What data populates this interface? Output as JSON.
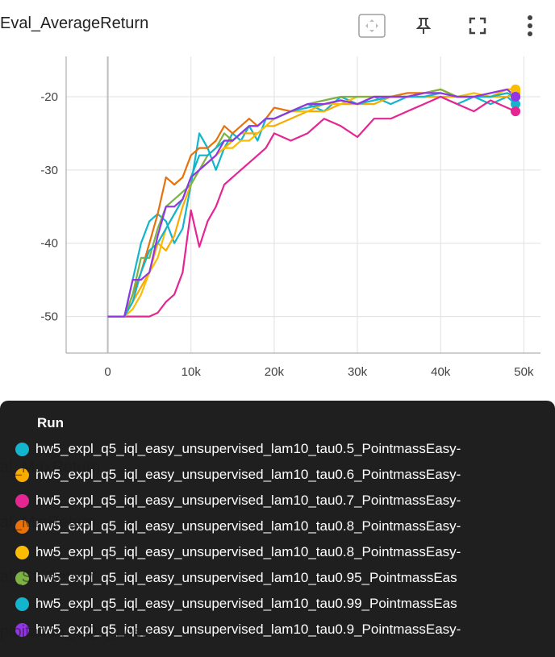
{
  "header": {
    "title": "Eval_AverageReturn",
    "tools": [
      {
        "name": "fit-domain-icon"
      },
      {
        "name": "pin-icon"
      },
      {
        "name": "fullscreen-icon"
      },
      {
        "name": "more-vert-icon"
      }
    ]
  },
  "background_titles": [
    "al_MaxReturn",
    "al_MinReturn",
    "al_StdReturn",
    "ploitation_CQL_Loss"
  ],
  "chart_data": {
    "type": "line",
    "title": "Eval_AverageReturn",
    "xlabel": "",
    "ylabel": "",
    "xlim": [
      -5000,
      52000
    ],
    "ylim": [
      -55,
      -14.5
    ],
    "x_ticks": [
      0,
      10000,
      20000,
      30000,
      40000,
      50000
    ],
    "x_tick_labels": [
      "0",
      "10k",
      "20k",
      "30k",
      "40k",
      "50k"
    ],
    "y_ticks": [
      -20,
      -30,
      -40,
      -50
    ],
    "y_tick_labels": [
      "-20",
      "-30",
      "-40",
      "-50"
    ],
    "grid": true,
    "series": [
      {
        "name": "hw5_expl_q5_iql_easy_unsupervised_lam10_tau0.5_PointmassEasy-",
        "color": "#12b5cb",
        "x": [
          0,
          1000,
          2000,
          3000,
          4000,
          5000,
          6000,
          7000,
          8000,
          9000,
          10000,
          11000,
          12000,
          13000,
          14000,
          15000,
          16000,
          17000,
          18000,
          19000,
          20000,
          22000,
          24000,
          26000,
          28000,
          30000,
          32000,
          34000,
          36000,
          38000,
          40000,
          42000,
          44000,
          46000,
          48000,
          49000
        ],
        "y": [
          -50,
          -50,
          -50,
          -45,
          -40,
          -37,
          -36,
          -37,
          -40,
          -38,
          -32,
          -25,
          -27,
          -30,
          -27,
          -25,
          -26,
          -24,
          -26,
          -23,
          -23,
          -22,
          -21,
          -22,
          -20,
          -21,
          -20,
          -21,
          -20,
          -20,
          -20,
          -21,
          -20,
          -21,
          -20,
          -21
        ]
      },
      {
        "name": "hw5_expl_q5_iql_easy_unsupervised_lam10_tau0.6_PointmassEasy-",
        "color": "#f9ab00",
        "x": [
          0,
          1000,
          2000,
          3000,
          4000,
          5000,
          6000,
          7000,
          8000,
          9000,
          10000,
          11000,
          12000,
          13000,
          14000,
          15000,
          16000,
          17000,
          18000,
          19000,
          20000,
          22000,
          24000,
          26000,
          28000,
          30000,
          32000,
          34000,
          36000,
          38000,
          40000,
          42000,
          44000,
          46000,
          48000,
          49000
        ],
        "y": [
          -50,
          -50,
          -50,
          -48,
          -46,
          -44,
          -40,
          -41,
          -39,
          -35,
          -32,
          -30,
          -29,
          -28,
          -27,
          -26,
          -25,
          -25,
          -25,
          -24,
          -24,
          -23,
          -22,
          -22,
          -21,
          -21,
          -21,
          -20,
          -20,
          -20,
          -20,
          -20,
          -20,
          -20,
          -20,
          -19.5
        ]
      },
      {
        "name": "hw5_expl_q5_iql_easy_unsupervised_lam10_tau0.7_PointmassEasy-",
        "color": "#e52592",
        "x": [
          0,
          1000,
          2000,
          3000,
          4000,
          5000,
          6000,
          7000,
          8000,
          9000,
          10000,
          11000,
          12000,
          13000,
          14000,
          15000,
          16000,
          17000,
          18000,
          19000,
          20000,
          22000,
          24000,
          26000,
          28000,
          30000,
          32000,
          34000,
          36000,
          38000,
          40000,
          42000,
          44000,
          46000,
          48000,
          49000
        ],
        "y": [
          -50,
          -50,
          -50,
          -50,
          -50,
          -50,
          -49.5,
          -48,
          -47,
          -44,
          -35.5,
          -40.5,
          -37,
          -35,
          -32,
          -31,
          -30,
          -29,
          -28,
          -27,
          -25,
          -26,
          -25,
          -23,
          -24,
          -25.5,
          -23,
          -23,
          -22,
          -21,
          -20,
          -21,
          -22,
          -20.5,
          -21.5,
          -22
        ]
      },
      {
        "name": "hw5_expl_q5_iql_easy_unsupervised_lam10_tau0.8_PointmassEasy-",
        "color": "#e8710a",
        "x": [
          0,
          1000,
          2000,
          3000,
          4000,
          5000,
          6000,
          7000,
          8000,
          9000,
          10000,
          11000,
          12000,
          13000,
          14000,
          15000,
          16000,
          17000,
          18000,
          19000,
          20000,
          22000,
          24000,
          26000,
          28000,
          30000,
          32000,
          34000,
          36000,
          38000,
          40000,
          42000,
          44000,
          46000,
          48000,
          49000
        ],
        "y": [
          -50,
          -50,
          -50,
          -47,
          -44,
          -40,
          -36,
          -31,
          -32,
          -31,
          -28,
          -27,
          -27,
          -26,
          -24,
          -25,
          -24,
          -23,
          -24,
          -23,
          -21.5,
          -22,
          -21,
          -21,
          -20.5,
          -21,
          -20,
          -20,
          -19.5,
          -19.5,
          -19,
          -20,
          -20,
          -19.5,
          -19,
          -19
        ]
      },
      {
        "name": "hw5_expl_q5_iql_easy_unsupervised_lam10_tau0.8_PointmassEasy-",
        "color": "#fbbc04",
        "x": [
          0,
          1000,
          2000,
          3000,
          4000,
          5000,
          6000,
          7000,
          8000,
          9000,
          10000,
          11000,
          12000,
          13000,
          14000,
          15000,
          16000,
          17000,
          18000,
          19000,
          20000,
          22000,
          24000,
          26000,
          28000,
          30000,
          32000,
          34000,
          36000,
          38000,
          40000,
          42000,
          44000,
          46000,
          48000,
          49000
        ],
        "y": [
          -50,
          -50,
          -50,
          -49,
          -47,
          -44,
          -42,
          -38,
          -36,
          -34,
          -31,
          -30,
          -29,
          -28,
          -27,
          -27,
          -26,
          -26,
          -25,
          -24,
          -23,
          -22,
          -22,
          -21,
          -21,
          -20,
          -20,
          -20,
          -20,
          -19.5,
          -19,
          -20,
          -19.5,
          -20,
          -19,
          -19
        ]
      },
      {
        "name": "hw5_expl_q5_iql_easy_unsupervised_lam10_tau0.95_PointmassEas",
        "color": "#7cb342",
        "x": [
          0,
          1000,
          2000,
          3000,
          4000,
          5000,
          6000,
          7000,
          8000,
          9000,
          10000,
          11000,
          12000,
          13000,
          14000,
          15000,
          16000,
          17000,
          18000,
          19000,
          20000,
          22000,
          24000,
          26000,
          28000,
          30000,
          32000,
          34000,
          36000,
          38000,
          40000,
          42000,
          44000,
          46000,
          48000,
          49000
        ],
        "y": [
          -50,
          -50,
          -50,
          -47,
          -42,
          -42,
          -38,
          -35,
          -34,
          -33,
          -32,
          -30,
          -28,
          -27,
          -25,
          -26,
          -25,
          -24,
          -24,
          -23,
          -23,
          -22,
          -21,
          -20.5,
          -20,
          -20,
          -20,
          -20,
          -20,
          -19.5,
          -19,
          -20,
          -20,
          -20,
          -19.5,
          -20
        ]
      },
      {
        "name": "hw5_expl_q5_iql_easy_unsupervised_lam10_tau0.99_PointmassEas",
        "color": "#12b5cb",
        "x": [
          0,
          1000,
          2000,
          3000,
          4000,
          5000,
          6000,
          7000,
          8000,
          9000,
          10000,
          11000,
          12000,
          13000,
          14000,
          15000,
          16000,
          17000,
          18000,
          19000,
          20000,
          22000,
          24000,
          26000,
          28000,
          30000,
          32000,
          34000,
          36000,
          38000,
          40000,
          42000,
          44000,
          46000,
          48000,
          49000
        ],
        "y": [
          -50,
          -50,
          -50,
          -48,
          -44,
          -41,
          -40,
          -38,
          -36,
          -34,
          -31,
          -28,
          -28,
          -27,
          -26,
          -26,
          -25,
          -24,
          -24,
          -23,
          -23,
          -22,
          -21.5,
          -21,
          -20.5,
          -21,
          -20.5,
          -20,
          -20,
          -20,
          -19.5,
          -20,
          -20,
          -20,
          -19.5,
          -20
        ]
      },
      {
        "name": "hw5_expl_q5_iql_easy_unsupervised_lam10_tau0.9_PointmassEasy-",
        "color": "#9334e6",
        "x": [
          0,
          1000,
          2000,
          3000,
          4000,
          5000,
          6000,
          7000,
          8000,
          9000,
          10000,
          11000,
          12000,
          13000,
          14000,
          15000,
          16000,
          17000,
          18000,
          19000,
          20000,
          22000,
          24000,
          26000,
          28000,
          30000,
          32000,
          34000,
          36000,
          38000,
          40000,
          42000,
          44000,
          46000,
          48000,
          49000
        ],
        "y": [
          -50,
          -50,
          -50,
          -45,
          -45,
          -44,
          -39,
          -35,
          -35,
          -34,
          -31,
          -30,
          -29,
          -28,
          -26,
          -26,
          -25,
          -24,
          -24,
          -23,
          -23,
          -22,
          -21,
          -21,
          -20.5,
          -21,
          -20,
          -20,
          -20,
          -19.5,
          -19.5,
          -20,
          -20,
          -19.5,
          -19,
          -20
        ]
      }
    ]
  },
  "legend": {
    "header": "Run"
  }
}
